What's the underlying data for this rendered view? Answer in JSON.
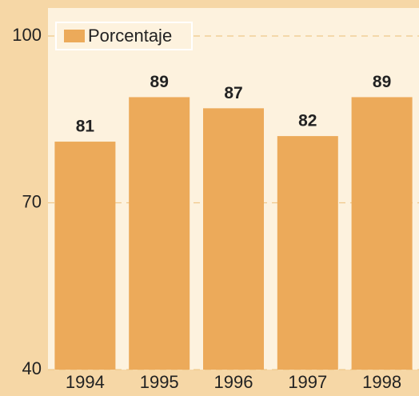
{
  "chart_data": {
    "type": "bar",
    "categories": [
      "1994",
      "1995",
      "1996",
      "1997",
      "1998"
    ],
    "series": [
      {
        "name": "Porcentaje",
        "color": "#ecaa5a",
        "values": [
          81,
          89,
          87,
          82,
          89
        ]
      }
    ],
    "ylim": [
      40,
      100
    ],
    "yticks": [
      40,
      70,
      100
    ],
    "grid": true,
    "legend": "upper left"
  }
}
